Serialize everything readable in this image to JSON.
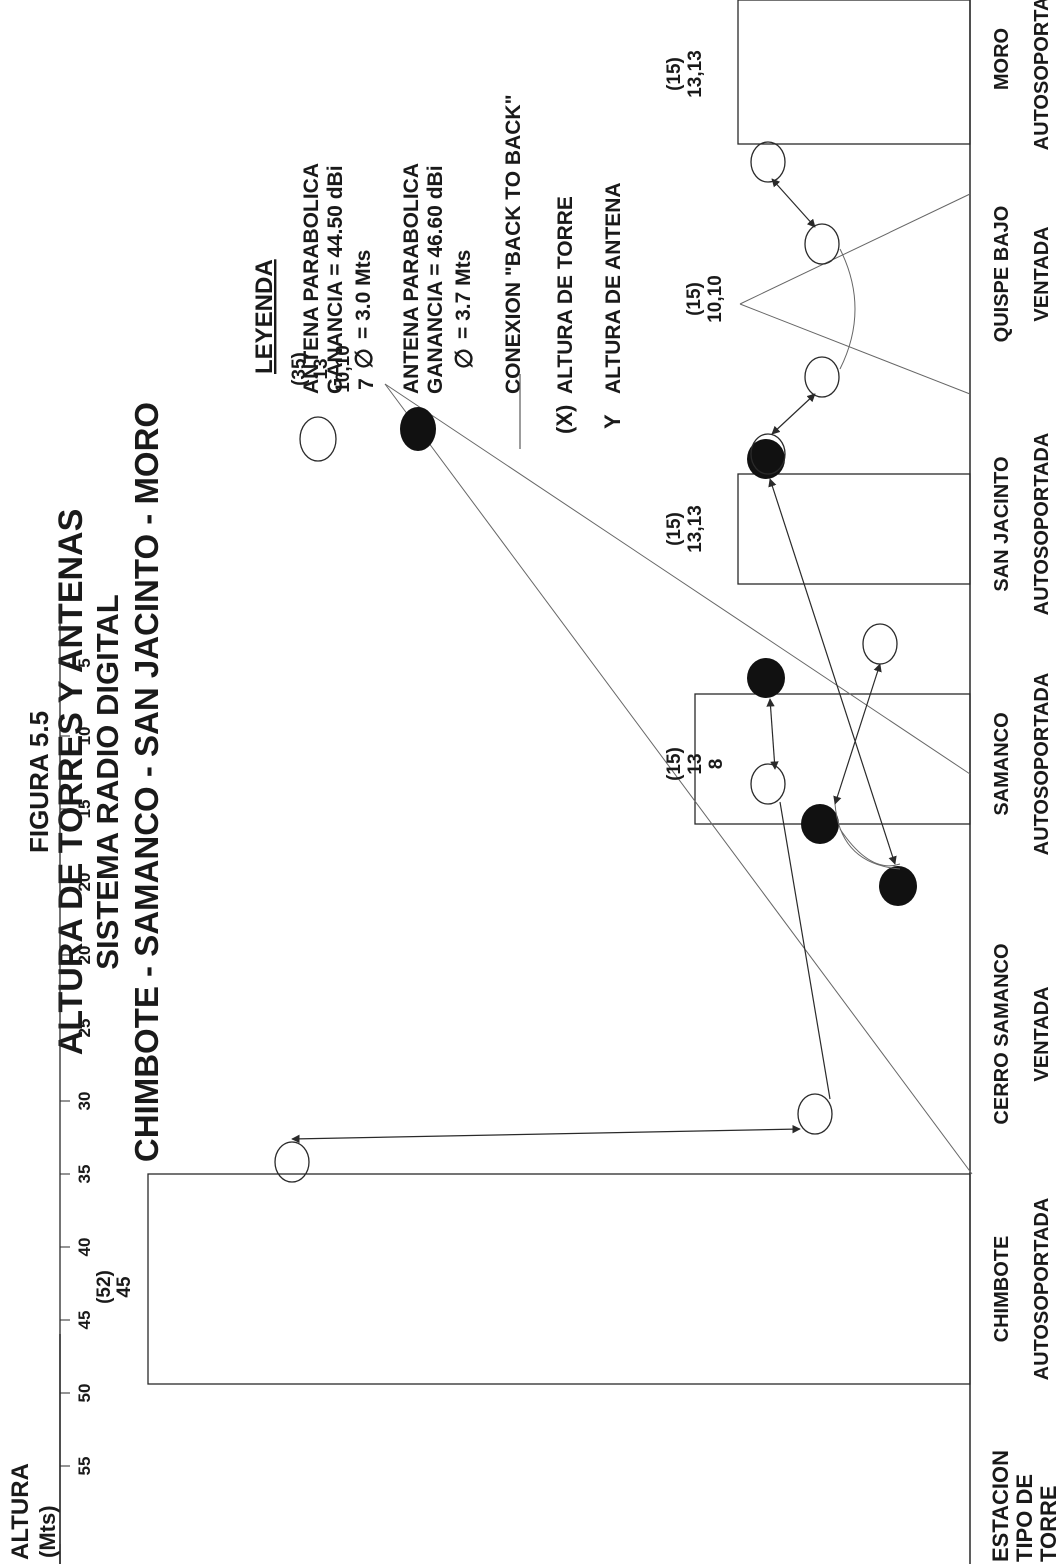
{
  "figure": {
    "number": "FIGURA 5.5",
    "title_line1": "ALTURA DE TORRES Y ANTENAS",
    "title_line2": "SISTEMA RADIO DIGITAL",
    "title_line3": "CHIMBOTE - SAMANCO - SAN JACINTO - MORO"
  },
  "axis": {
    "ylabel_line1": "ALTURA",
    "ylabel_line2": "(Mts)",
    "ticks_upper": [
      "55",
      "50",
      "45",
      "40",
      "35",
      "30",
      "25",
      "20"
    ],
    "ticks_lower": [
      "20",
      "15",
      "10",
      "5"
    ],
    "row_station": "ESTACION",
    "row_tower_type_1": "TIPO DE",
    "row_tower_type_2": "TORRE"
  },
  "stations": [
    {
      "name": "CHIMBOTE",
      "type": "AUTOSOPORTADA",
      "label_line1": "(52)",
      "label_line2": "45",
      "label_line3": ""
    },
    {
      "name": "CERRO SAMANCO",
      "type": "VENTADA",
      "label_line1": "(35)",
      "label_line2": "13",
      "label_line3": "10,10",
      "label_line4": "7"
    },
    {
      "name": "SAMANCO",
      "type": "AUTOSOPORTADA",
      "label_line1": "(15)",
      "label_line2": "13",
      "label_line3": "8"
    },
    {
      "name": "SAN JACINTO",
      "type": "AUTOSOPORTADA",
      "label_line1": "(15)",
      "label_line2": "13,13",
      "label_line3": ""
    },
    {
      "name": "QUISPE BAJO",
      "type": "VENTADA",
      "label_line1": "(15)",
      "label_line2": "10,10",
      "label_line3": ""
    },
    {
      "name": "MORO",
      "type": "AUTOSOPORTADA",
      "label_line1": "(15)",
      "label_line2": "13,13",
      "label_line3": ""
    }
  ],
  "legend": {
    "title": "LEYENDA",
    "item1_line1": "ANTENA PARABOLICA",
    "item1_line2": "GANANCIA = 44.50 dBi",
    "item1_line3": "= 3.0 Mts",
    "item2_line1": "ANTENA PARABOLICA",
    "item2_line2": "GANANCIA = 46.60 dBi",
    "item2_line3": "= 3.7 Mts",
    "item3": "CONEXION \"BACK TO BACK\"",
    "item4_symbol": "(X)",
    "item4": "ALTURA DE TORRE",
    "item5_symbol": "Y",
    "item5": "ALTURA DE ANTENA",
    "diameter_symbol": "∅"
  },
  "colors": {
    "ink": "#1a1a1a",
    "line": "#2a2a2a",
    "guy_line": "#777777",
    "antenna_large_fill": "#111111",
    "antenna_small_fill": "#ffffff"
  }
}
